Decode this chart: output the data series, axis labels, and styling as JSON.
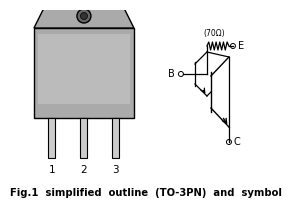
{
  "title": "Fig.1  simplified  outline  (TO-3PN)  and  symbol",
  "title_fontsize": 7.2,
  "bg_color": "#ffffff",
  "pkg_color": "#aaaaaa",
  "pkg_color2": "#999999",
  "line_color": "#000000",
  "pin_color": "#cccccc",
  "label_1": "1",
  "label_2": "2",
  "label_3": "3",
  "label_B": "B",
  "label_E": "E",
  "label_C": "C",
  "resistor_label": "(70Ω)"
}
